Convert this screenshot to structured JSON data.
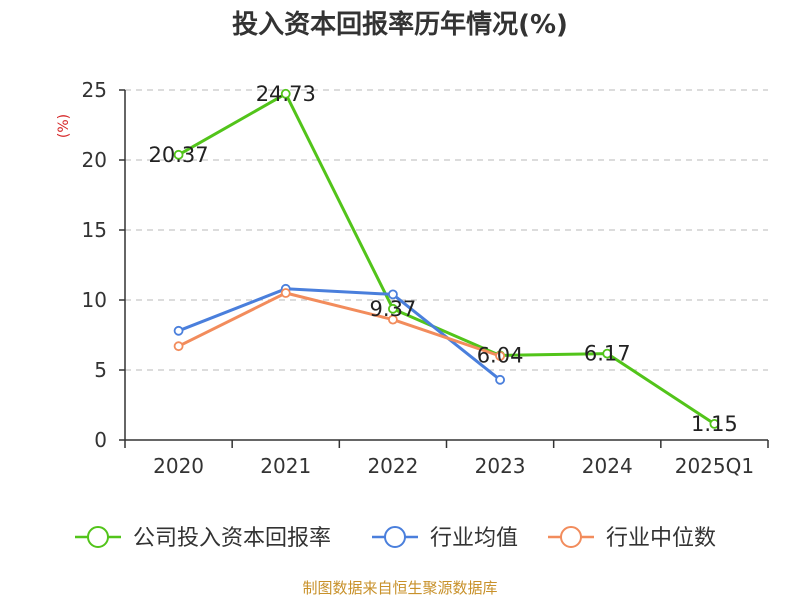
{
  "chart_data": {
    "type": "line",
    "title": "投入资本回报率历年情况(%)",
    "ylabel": "(%)",
    "categories": [
      "2020",
      "2021",
      "2022",
      "2023",
      "2024",
      "2025Q1"
    ],
    "ylim": [
      0,
      25
    ],
    "yticks": [
      0,
      5,
      10,
      15,
      20,
      25
    ],
    "grid": true,
    "legend_position": "bottom",
    "series": [
      {
        "name": "公司投入资本回报率",
        "color": "#52c41a",
        "values": [
          20.37,
          24.73,
          9.37,
          6.04,
          6.17,
          1.15
        ],
        "labels": [
          "20.37",
          "24.73",
          "9.37",
          "6.04",
          "6.17",
          "1.15"
        ]
      },
      {
        "name": "行业均值",
        "color": "#4a7fdc",
        "values": [
          7.8,
          10.8,
          10.4,
          4.3,
          null,
          null
        ]
      },
      {
        "name": "行业中位数",
        "color": "#f28c5c",
        "values": [
          6.7,
          10.5,
          8.6,
          6.0,
          null,
          null
        ]
      }
    ]
  },
  "source": "制图数据来自恒生聚源数据库"
}
